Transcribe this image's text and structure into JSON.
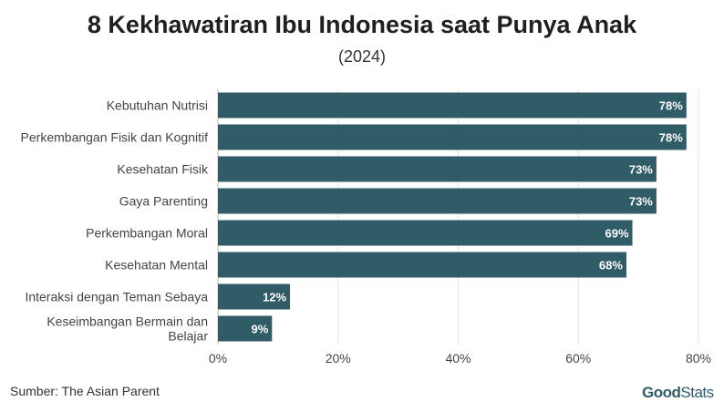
{
  "title": "8 Kekhawatiran Ibu Indonesia saat Punya Anak",
  "subtitle": "(2024)",
  "source": "Sumber: The Asian Parent",
  "logo": {
    "bold": "Good",
    "light": "Stats"
  },
  "colors": {
    "bar": "#305c68",
    "label": "#ffffff",
    "grid": "#e6e6e6",
    "axis": "#444444"
  },
  "chart_data": {
    "type": "bar",
    "orientation": "horizontal",
    "categories": [
      [
        "Kebutuhan Nutrisi"
      ],
      [
        "Perkembangan Fisik dan Kognitif"
      ],
      [
        "Kesehatan Fisik"
      ],
      [
        "Gaya Parenting"
      ],
      [
        "Perkembangan Moral"
      ],
      [
        "Kesehatan Mental"
      ],
      [
        "Interaksi dengan Teman Sebaya"
      ],
      [
        "Keseimbangan Bermain dan",
        "Belajar"
      ]
    ],
    "values": [
      78,
      78,
      73,
      73,
      69,
      68,
      12,
      9
    ],
    "data_labels": [
      "78%",
      "78%",
      "73%",
      "73%",
      "69%",
      "68%",
      "12%",
      "9%"
    ],
    "x_ticks": [
      0,
      20,
      40,
      60,
      80
    ],
    "x_tick_labels": [
      "0%",
      "20%",
      "40%",
      "60%",
      "80%"
    ],
    "xlim": [
      0,
      80
    ],
    "grid": true
  }
}
